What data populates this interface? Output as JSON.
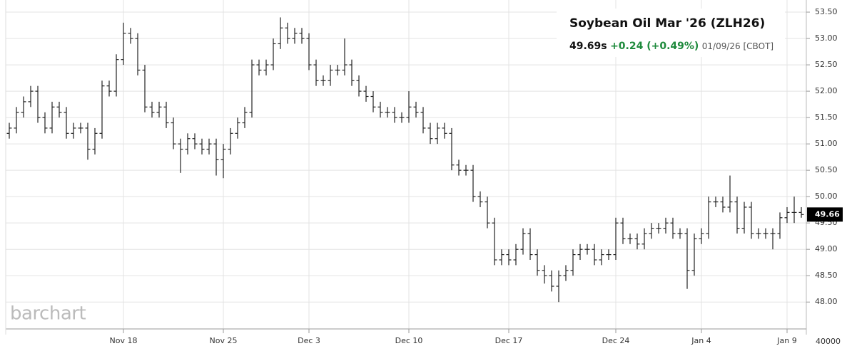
{
  "chart_data": {
    "type": "ohlc",
    "title": "Soybean Oil Mar '26 (ZLH26)",
    "last_price": "49.69s",
    "change": "+0.24 (+0.49%)",
    "quote_info": "01/09/26 [CBOT]",
    "logo": "barchart",
    "volume_axis_label": "40000",
    "last_value": 49.66,
    "color": "#222222",
    "grid": true,
    "ylim": [
      47.49,
      53.73
    ],
    "yticks": [
      {
        "value": 48,
        "label": "48.00"
      },
      {
        "value": 48.5,
        "label": "48.50"
      },
      {
        "value": 49,
        "label": "49.00"
      },
      {
        "value": 49.5,
        "label": "49.50"
      },
      {
        "value": 50,
        "label": "50.00"
      },
      {
        "value": 50.5,
        "label": "50.50"
      },
      {
        "value": 51,
        "label": "51.00"
      },
      {
        "value": 51.5,
        "label": "51.50"
      },
      {
        "value": 52,
        "label": "52.00"
      },
      {
        "value": 52.5,
        "label": "52.50"
      },
      {
        "value": 53,
        "label": "53.00"
      },
      {
        "value": 53.5,
        "label": "53.50"
      }
    ],
    "categories": [
      null,
      null,
      null,
      null,
      null,
      null,
      null,
      null,
      null,
      null,
      null,
      null,
      null,
      null,
      null,
      null,
      "Nov 18",
      null,
      null,
      null,
      null,
      null,
      null,
      null,
      null,
      null,
      null,
      null,
      null,
      null,
      "Nov 25",
      null,
      null,
      null,
      null,
      null,
      null,
      null,
      null,
      null,
      null,
      null,
      "Dec 3",
      null,
      null,
      null,
      null,
      null,
      null,
      null,
      null,
      null,
      null,
      null,
      null,
      null,
      "Dec 10",
      null,
      null,
      null,
      null,
      null,
      null,
      null,
      null,
      null,
      null,
      null,
      null,
      null,
      "Dec 17",
      null,
      null,
      null,
      null,
      null,
      null,
      null,
      null,
      null,
      null,
      null,
      null,
      null,
      null,
      "Dec 24",
      null,
      null,
      null,
      null,
      null,
      null,
      null,
      null,
      null,
      null,
      null,
      "Jan 4",
      null,
      null,
      null,
      null,
      null,
      null,
      null,
      null,
      null,
      null,
      null,
      "Jan 9",
      null,
      null
    ],
    "open": [
      51.2,
      51.3,
      51.6,
      51.8,
      52.0,
      51.5,
      51.3,
      51.7,
      51.6,
      51.2,
      51.3,
      51.3,
      50.9,
      51.2,
      52.1,
      52.0,
      52.6,
      53.1,
      53.0,
      52.4,
      51.7,
      51.6,
      51.7,
      51.4,
      51.0,
      50.9,
      51.1,
      51.0,
      50.9,
      51.0,
      50.7,
      50.9,
      51.2,
      51.4,
      51.6,
      52.5,
      52.4,
      52.5,
      52.9,
      53.2,
      53.0,
      53.1,
      53.0,
      52.5,
      52.2,
      52.2,
      52.4,
      52.4,
      52.5,
      52.2,
      52.0,
      51.9,
      51.7,
      51.6,
      51.6,
      51.5,
      51.5,
      51.7,
      51.6,
      51.3,
      51.1,
      51.3,
      51.2,
      50.6,
      50.5,
      50.5,
      50.0,
      49.9,
      49.5,
      48.8,
      48.9,
      48.8,
      49.0,
      49.3,
      48.9,
      48.6,
      48.5,
      48.3,
      48.5,
      48.6,
      48.9,
      49.0,
      49.0,
      48.8,
      48.9,
      48.9,
      49.5,
      49.2,
      49.2,
      49.1,
      49.3,
      49.4,
      49.4,
      49.5,
      49.3,
      49.3,
      48.6,
      49.2,
      49.3,
      49.9,
      49.9,
      49.8,
      49.9,
      49.4,
      49.8,
      49.3,
      49.3,
      49.3,
      49.3,
      49.6,
      49.7,
      49.7
    ],
    "high": [
      51.4,
      51.7,
      51.9,
      52.1,
      52.1,
      51.6,
      51.8,
      51.8,
      51.7,
      51.4,
      51.4,
      51.4,
      51.3,
      52.2,
      52.2,
      52.7,
      53.3,
      53.2,
      53.1,
      52.5,
      51.8,
      51.8,
      51.8,
      51.5,
      51.1,
      51.2,
      51.2,
      51.1,
      51.1,
      51.1,
      51.0,
      51.3,
      51.5,
      51.7,
      52.6,
      52.6,
      52.6,
      53.0,
      53.4,
      53.3,
      53.2,
      53.2,
      53.1,
      52.6,
      52.3,
      52.5,
      52.5,
      53.0,
      52.6,
      52.3,
      52.1,
      52.0,
      51.8,
      51.7,
      51.7,
      51.6,
      52.0,
      51.8,
      51.7,
      51.4,
      51.4,
      51.4,
      51.3,
      50.7,
      50.6,
      50.6,
      50.1,
      50.0,
      49.6,
      49.0,
      49.0,
      49.1,
      49.4,
      49.4,
      49.0,
      48.7,
      48.6,
      48.6,
      48.7,
      49.0,
      49.1,
      49.1,
      49.1,
      49.0,
      49.0,
      49.6,
      49.6,
      49.3,
      49.3,
      49.4,
      49.5,
      49.5,
      49.6,
      49.6,
      49.4,
      49.4,
      49.3,
      49.4,
      50.0,
      50.0,
      50.0,
      50.4,
      50.0,
      49.9,
      49.9,
      49.4,
      49.4,
      49.4,
      49.7,
      49.8,
      50.0,
      49.8
    ],
    "low": [
      51.1,
      51.2,
      51.5,
      51.7,
      51.4,
      51.2,
      51.2,
      51.5,
      51.1,
      51.1,
      51.2,
      50.7,
      50.8,
      51.1,
      51.9,
      51.9,
      52.5,
      52.9,
      52.3,
      51.6,
      51.5,
      51.5,
      51.3,
      50.9,
      50.45,
      50.8,
      50.9,
      50.8,
      50.8,
      50.4,
      50.35,
      50.8,
      51.1,
      51.3,
      51.5,
      52.3,
      52.3,
      52.4,
      52.8,
      52.9,
      52.9,
      52.9,
      52.4,
      52.1,
      52.1,
      52.1,
      52.3,
      52.3,
      52.1,
      51.9,
      51.8,
      51.6,
      51.5,
      51.5,
      51.4,
      51.4,
      51.4,
      51.5,
      51.2,
      51.0,
      51.0,
      51.1,
      50.5,
      50.4,
      50.4,
      49.9,
      49.8,
      49.4,
      48.7,
      48.7,
      48.7,
      48.7,
      48.9,
      48.8,
      48.5,
      48.35,
      48.2,
      48.0,
      48.4,
      48.5,
      48.8,
      48.9,
      48.7,
      48.7,
      48.8,
      48.8,
      49.1,
      49.1,
      49.0,
      49.0,
      49.2,
      49.3,
      49.3,
      49.2,
      49.2,
      48.25,
      48.5,
      49.1,
      49.2,
      49.8,
      49.7,
      49.7,
      49.3,
      49.3,
      49.2,
      49.2,
      49.2,
      49.0,
      49.2,
      49.5,
      49.5,
      49.6
    ],
    "close": [
      51.3,
      51.6,
      51.8,
      52.0,
      51.5,
      51.3,
      51.7,
      51.6,
      51.2,
      51.3,
      51.3,
      50.9,
      51.2,
      52.1,
      52.0,
      52.6,
      53.1,
      53.0,
      52.4,
      51.7,
      51.6,
      51.7,
      51.4,
      51.0,
      50.9,
      51.1,
      51.0,
      50.9,
      51.0,
      50.7,
      50.9,
      51.2,
      51.4,
      51.6,
      52.5,
      52.4,
      52.5,
      52.9,
      53.2,
      53.0,
      53.1,
      53.0,
      52.5,
      52.2,
      52.2,
      52.4,
      52.4,
      52.5,
      52.2,
      52.0,
      51.9,
      51.7,
      51.6,
      51.6,
      51.5,
      51.5,
      51.7,
      51.6,
      51.3,
      51.1,
      51.3,
      51.2,
      50.6,
      50.5,
      50.5,
      50.0,
      49.9,
      49.5,
      48.8,
      48.9,
      48.8,
      49.0,
      49.3,
      48.9,
      48.6,
      48.5,
      48.3,
      48.5,
      48.6,
      48.9,
      49.0,
      49.0,
      48.8,
      48.9,
      48.9,
      49.5,
      49.2,
      49.2,
      49.1,
      49.3,
      49.4,
      49.4,
      49.5,
      49.3,
      49.3,
      48.6,
      49.2,
      49.3,
      49.9,
      49.9,
      49.8,
      49.9,
      49.4,
      49.8,
      49.3,
      49.3,
      49.3,
      49.3,
      49.6,
      49.7,
      49.7,
      49.66
    ]
  }
}
